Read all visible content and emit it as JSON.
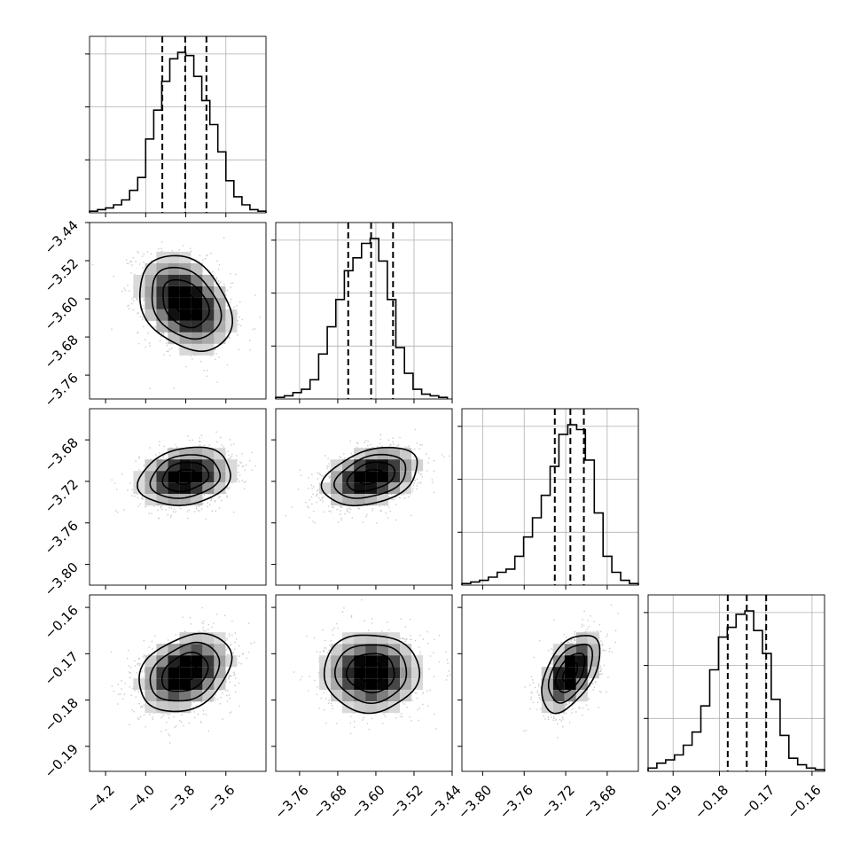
{
  "chart_data": {
    "type": "corner",
    "parameters": [
      {
        "index": 0,
        "range": [
          -4.28,
          -3.4
        ],
        "tick_values": [
          -4.2,
          -4.0,
          -3.8,
          -3.6
        ],
        "tick_labels": [
          "−4.2",
          "−4.0",
          "−3.8",
          "−3.6"
        ],
        "quantiles": [
          -3.917,
          -3.803,
          -3.697
        ],
        "median": -3.803,
        "std": 0.115,
        "histogram_bin_edges": [
          -4.28,
          -4.24,
          -4.2,
          -4.16,
          -4.12,
          -4.08,
          -4.04,
          -4.0,
          -3.96,
          -3.92,
          -3.88,
          -3.84,
          -3.8,
          -3.76,
          -3.72,
          -3.68,
          -3.64,
          -3.6,
          -3.56,
          -3.52,
          -3.48,
          -3.44,
          -3.4
        ],
        "histogram_counts": [
          0.01,
          0.02,
          0.03,
          0.05,
          0.08,
          0.14,
          0.22,
          0.46,
          0.64,
          0.82,
          0.96,
          1.0,
          0.98,
          0.85,
          0.7,
          0.55,
          0.38,
          0.2,
          0.1,
          0.05,
          0.02,
          0.01
        ]
      },
      {
        "index": 1,
        "range": [
          -3.81,
          -3.44
        ],
        "tick_values": [
          -3.76,
          -3.68,
          -3.6,
          -3.52,
          -3.44
        ],
        "tick_labels": [
          "−3.76",
          "−3.68",
          "−3.60",
          "−3.52",
          "−3.44"
        ],
        "quantiles": [
          -3.658,
          -3.61,
          -3.564
        ],
        "median": -3.61,
        "std": 0.05,
        "histogram_bin_edges": [
          -3.81,
          -3.792,
          -3.774,
          -3.756,
          -3.738,
          -3.72,
          -3.702,
          -3.684,
          -3.666,
          -3.648,
          -3.63,
          -3.612,
          -3.594,
          -3.576,
          -3.558,
          -3.54,
          -3.522,
          -3.504,
          -3.486,
          -3.468,
          -3.45
        ],
        "histogram_counts": [
          0.01,
          0.02,
          0.04,
          0.06,
          0.12,
          0.28,
          0.45,
          0.62,
          0.8,
          0.88,
          0.97,
          1.0,
          0.86,
          0.62,
          0.32,
          0.16,
          0.06,
          0.03,
          0.02,
          0.01
        ]
      },
      {
        "index": 2,
        "range": [
          -3.82,
          -3.65
        ],
        "tick_values": [
          -3.8,
          -3.76,
          -3.72,
          -3.68
        ],
        "tick_labels": [
          "−3.80",
          "−3.76",
          "−3.72",
          "−3.68"
        ],
        "quantiles": [
          -3.7305,
          -3.7155,
          -3.7025
        ],
        "median": -3.7155,
        "std": 0.014,
        "histogram_bin_edges": [
          -3.82,
          -3.8115,
          -3.803,
          -3.7945,
          -3.786,
          -3.7775,
          -3.769,
          -3.7605,
          -3.752,
          -3.7435,
          -3.735,
          -3.7265,
          -3.718,
          -3.7095,
          -3.701,
          -3.6925,
          -3.684,
          -3.6755,
          -3.667,
          -3.6585,
          -3.65
        ],
        "histogram_counts": [
          0.01,
          0.02,
          0.03,
          0.05,
          0.08,
          0.1,
          0.18,
          0.3,
          0.42,
          0.56,
          0.74,
          0.94,
          1.0,
          0.97,
          0.78,
          0.45,
          0.18,
          0.08,
          0.03,
          0.01
        ]
      },
      {
        "index": 3,
        "range": [
          -0.1954,
          -0.1573
        ],
        "tick_values": [
          -0.19,
          -0.18,
          -0.17,
          -0.16
        ],
        "tick_labels": [
          "−0.19",
          "−0.18",
          "−0.17",
          "−0.16"
        ],
        "quantiles": [
          -0.1782,
          -0.1741,
          -0.1699
        ],
        "median": -0.1741,
        "std": 0.0042,
        "histogram_bin_edges": [
          -0.1954,
          -0.1935,
          -0.1916,
          -0.1897,
          -0.1878,
          -0.1859,
          -0.184,
          -0.1821,
          -0.1802,
          -0.1783,
          -0.1764,
          -0.1745,
          -0.1726,
          -0.1707,
          -0.1688,
          -0.1669,
          -0.165,
          -0.1631,
          -0.1612,
          -0.1593,
          -0.1573
        ],
        "histogram_counts": [
          0.02,
          0.05,
          0.07,
          0.1,
          0.16,
          0.24,
          0.4,
          0.62,
          0.82,
          0.88,
          0.96,
          0.98,
          0.86,
          0.72,
          0.44,
          0.22,
          0.08,
          0.04,
          0.02,
          0.01
        ]
      }
    ],
    "pairs": [
      {
        "x": 0,
        "y": 1,
        "correlation": -0.3
      },
      {
        "x": 0,
        "y": 2,
        "correlation": 0.2
      },
      {
        "x": 1,
        "y": 2,
        "correlation": 0.35
      },
      {
        "x": 0,
        "y": 3,
        "correlation": 0.3
      },
      {
        "x": 1,
        "y": 3,
        "correlation": 0.0
      },
      {
        "x": 2,
        "y": 3,
        "correlation": 0.5
      }
    ],
    "contour_levels_sigma": [
      0.5,
      1.0,
      1.5,
      2.0
    ],
    "quantile_line_style": "dashed",
    "grid": true,
    "colors": {
      "line": "#000000",
      "grid": "#b0b0b0",
      "density_dark": "#000000",
      "density_light": "#ffffff",
      "points": "#8a8a8a"
    },
    "title": "",
    "xlabel": "",
    "ylabel": ""
  }
}
